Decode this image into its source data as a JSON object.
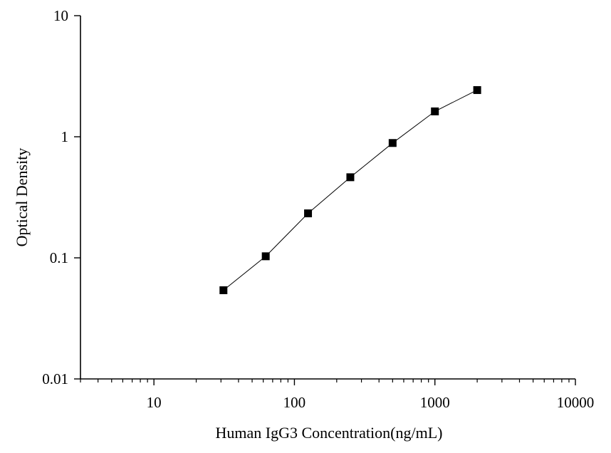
{
  "chart_data": {
    "type": "scatter",
    "title": "",
    "xlabel": "Human IgG3 Concentration(ng/mL)",
    "ylabel": "Optical Density",
    "x_scale": "log",
    "y_scale": "log",
    "xlim": [
      3,
      10000
    ],
    "ylim": [
      0.01,
      10
    ],
    "x_ticks": [
      10,
      100,
      1000,
      10000
    ],
    "x_tick_labels": [
      "10",
      "100",
      "1000",
      "10000"
    ],
    "y_ticks": [
      0.01,
      0.1,
      1,
      10
    ],
    "y_tick_labels": [
      "0.01",
      "0.1",
      "1",
      "10"
    ],
    "grid": false,
    "legend": "none",
    "colors": {
      "points": "#000000",
      "line": "#000000",
      "axes": "#000000"
    },
    "series": [
      {
        "x": [
          31.25,
          62.5,
          125,
          250,
          500,
          1000,
          2000
        ],
        "y": [
          0.054,
          0.103,
          0.233,
          0.463,
          0.888,
          1.62,
          2.43
        ]
      }
    ]
  }
}
